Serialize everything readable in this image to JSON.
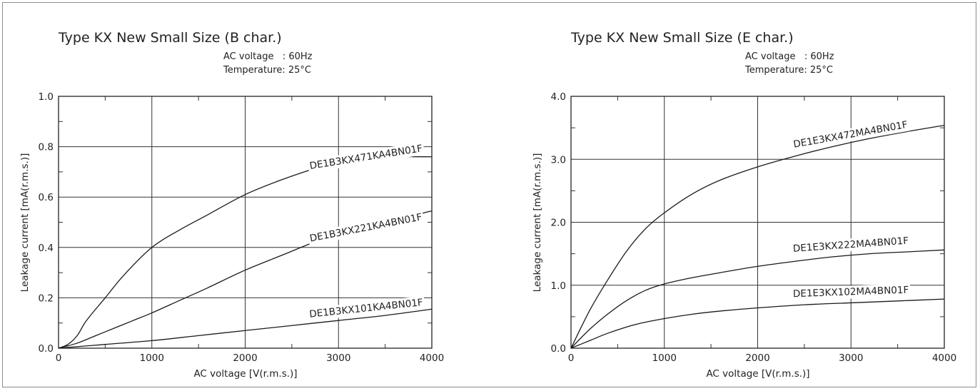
{
  "chart_data": [
    {
      "type": "line",
      "title": "Type KX New Small Size (B char.)",
      "conditions": [
        "AC voltage   : 60Hz",
        "Temperature: 25°C"
      ],
      "xlabel": "AC voltage [V(r.m.s.)]",
      "ylabel": "Leakage current [mA(r.m.s.)]",
      "xlim": [
        0,
        4000
      ],
      "ylim": [
        0,
        1.0
      ],
      "xticks": [
        0,
        1000,
        2000,
        3000,
        4000
      ],
      "xtick_labels": [
        "0",
        "1000",
        "2000",
        "3000",
        "4000"
      ],
      "yticks": [
        0,
        0.2,
        0.4,
        0.6,
        0.8,
        1.0
      ],
      "ytick_labels": [
        "0.0",
        "0.2",
        "0.4",
        "0.6",
        "0.8",
        "1.0"
      ],
      "grid": true,
      "series": [
        {
          "name": "DE1B3KX471KA4BN01F",
          "x": [
            0,
            100,
            200,
            300,
            500,
            700,
            1000,
            1300,
            1600,
            2000,
            2400,
            2800,
            3000,
            3300,
            3600,
            4000
          ],
          "y": [
            0,
            0.015,
            0.05,
            0.11,
            0.2,
            0.29,
            0.4,
            0.47,
            0.53,
            0.61,
            0.67,
            0.72,
            0.74,
            0.755,
            0.76,
            0.76
          ]
        },
        {
          "name": "DE1B3KX221KA4BN01F",
          "x": [
            0,
            200,
            400,
            600,
            800,
            1000,
            1300,
            1600,
            2000,
            2400,
            2800,
            3200,
            3600,
            4000
          ],
          "y": [
            0,
            0.02,
            0.05,
            0.08,
            0.11,
            0.14,
            0.19,
            0.24,
            0.31,
            0.37,
            0.43,
            0.48,
            0.51,
            0.545
          ]
        },
        {
          "name": "DE1B3KX101KA4BN01F",
          "x": [
            0,
            500,
            1000,
            1500,
            2000,
            2500,
            3000,
            3500,
            4000
          ],
          "y": [
            0,
            0.015,
            0.03,
            0.05,
            0.07,
            0.09,
            0.11,
            0.13,
            0.155
          ]
        }
      ]
    },
    {
      "type": "line",
      "title": "Type KX New Small Size (E char.)",
      "conditions": [
        "AC voltage   : 60Hz",
        "Temperature: 25°C"
      ],
      "xlabel": "AC voltage [V(r.m.s.)]",
      "ylabel": "Leakage current [mA(r.m.s.)]",
      "xlim": [
        0,
        4000
      ],
      "ylim": [
        0,
        4.0
      ],
      "xticks": [
        0,
        1000,
        2000,
        3000,
        4000
      ],
      "xtick_labels": [
        "0",
        "1000",
        "2000",
        "3000",
        "4000"
      ],
      "yticks": [
        0,
        1.0,
        2.0,
        3.0,
        4.0
      ],
      "ytick_labels": [
        "0.0",
        "1.0",
        "2.0",
        "3.0",
        "4.0"
      ],
      "grid": true,
      "series": [
        {
          "name": "DE1E3KX472MA4BN01F",
          "x": [
            0,
            200,
            400,
            600,
            800,
            1000,
            1300,
            1600,
            2000,
            2400,
            2800,
            3200,
            3600,
            4000
          ],
          "y": [
            0,
            0.6,
            1.1,
            1.55,
            1.9,
            2.15,
            2.45,
            2.67,
            2.88,
            3.05,
            3.2,
            3.33,
            3.44,
            3.54
          ]
        },
        {
          "name": "DE1E3KX222MA4BN01F",
          "x": [
            0,
            200,
            400,
            600,
            800,
            1000,
            1300,
            1600,
            2000,
            2400,
            2800,
            3200,
            3600,
            4000
          ],
          "y": [
            0,
            0.3,
            0.55,
            0.76,
            0.92,
            1.02,
            1.12,
            1.2,
            1.3,
            1.38,
            1.45,
            1.5,
            1.53,
            1.56
          ]
        },
        {
          "name": "DE1E3KX102MA4BN01F",
          "x": [
            0,
            200,
            400,
            700,
            1000,
            1300,
            1600,
            2000,
            2500,
            3000,
            3500,
            4000
          ],
          "y": [
            0,
            0.12,
            0.24,
            0.38,
            0.47,
            0.54,
            0.59,
            0.64,
            0.69,
            0.72,
            0.75,
            0.78
          ]
        }
      ]
    }
  ]
}
